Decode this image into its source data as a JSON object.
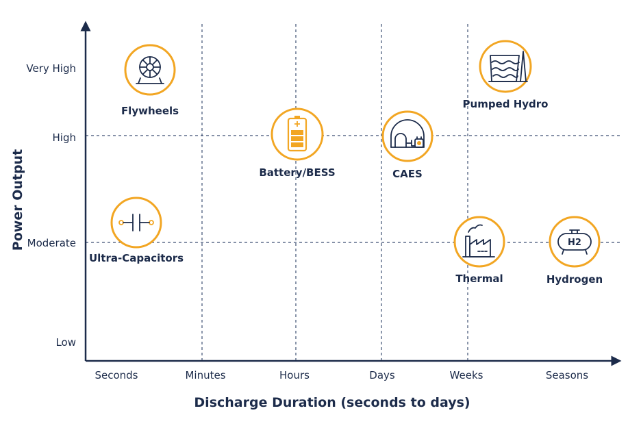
{
  "chart_data": {
    "type": "scatter",
    "xlabel": "Discharge Duration (seconds to days)",
    "ylabel": "Power Output",
    "x_categories": [
      "Seconds",
      "Minutes",
      "Hours",
      "Days",
      "Weeks",
      "Seasons"
    ],
    "y_categories": [
      "Low",
      "Moderate",
      "High",
      "Very High"
    ],
    "grid": true,
    "points": [
      {
        "label": "Flywheels",
        "x": "Seconds",
        "y": "Very High",
        "icon": "flywheel-icon"
      },
      {
        "label": "Ultra-Capacitors",
        "x": "Seconds",
        "y": "Moderate",
        "icon": "capacitor-icon"
      },
      {
        "label": "Battery/BESS",
        "x": "Hours",
        "y": "High",
        "icon": "battery-icon"
      },
      {
        "label": "CAES",
        "x": "Days",
        "y": "High",
        "icon": "caes-icon"
      },
      {
        "label": "Pumped Hydro",
        "x": "Weeks",
        "y": "Very High",
        "icon": "pumped-hydro-icon"
      },
      {
        "label": "Thermal",
        "x": "Weeks",
        "y": "Moderate",
        "icon": "thermal-icon"
      },
      {
        "label": "Hydrogen",
        "x": "Seasons",
        "y": "Moderate",
        "icon": "hydrogen-icon"
      }
    ],
    "hydrogen_badge": "H2",
    "colors": {
      "accent": "#f2a623",
      "ink": "#1c2b4a",
      "grid": "#3d4f73"
    }
  }
}
